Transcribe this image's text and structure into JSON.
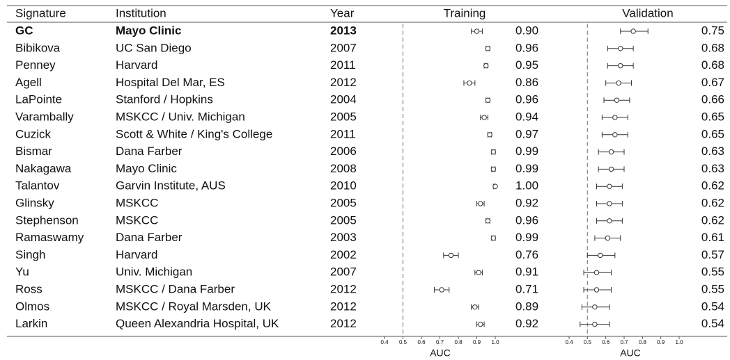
{
  "table": {
    "columns": [
      "Signature",
      "Institution",
      "Year"
    ],
    "highlight_row": 0,
    "rows": [
      [
        "GC",
        "Mayo Clinic",
        "2013"
      ],
      [
        "Bibikova",
        "UC San Diego",
        "2007"
      ],
      [
        "Penney",
        "Harvard",
        "2011"
      ],
      [
        "Agell",
        "Hospital Del Mar, ES",
        "2012"
      ],
      [
        "LaPointe",
        "Stanford / Hopkins",
        "2004"
      ],
      [
        "Varambally",
        "MSKCC / Univ. Michigan",
        "2005"
      ],
      [
        "Cuzick",
        "Scott & White / King's College",
        "2011"
      ],
      [
        "Bismar",
        "Dana Farber",
        "2006"
      ],
      [
        "Nakagawa",
        "Mayo Clinic",
        "2008"
      ],
      [
        "Talantov",
        "Garvin Institute, AUS",
        "2010"
      ],
      [
        "Glinsky",
        "MSKCC",
        "2005"
      ],
      [
        "Stephenson",
        "MSKCC",
        "2005"
      ],
      [
        "Ramaswamy",
        "Dana Farber",
        "2003"
      ],
      [
        "Singh",
        "Harvard",
        "2002"
      ],
      [
        "Yu",
        "Univ. Michigan",
        "2007"
      ],
      [
        "Ross",
        "MSKCC / Dana Farber",
        "2012"
      ],
      [
        "Olmos",
        "MSKCC / Royal Marsden, UK",
        "2012"
      ],
      [
        "Larkin",
        "Queen Alexandria Hospital, UK",
        "2012"
      ]
    ]
  },
  "chart_data": [
    {
      "type": "forest",
      "title": "Training",
      "xlabel": "AUC",
      "xlim": [
        0.4,
        1.0
      ],
      "xticks": [
        0.4,
        0.5,
        0.6,
        0.7,
        0.8,
        0.9,
        {
          "value": 1,
          "label": "1.0"
        }
      ],
      "reference": 0.5,
      "values": [
        0.9,
        0.96,
        0.95,
        0.86,
        0.96,
        0.94,
        0.97,
        0.99,
        0.99,
        1,
        0.92,
        0.96,
        0.99,
        0.76,
        0.91,
        0.71,
        0.89,
        0.92
      ],
      "value_labels": [
        "0.90",
        "0.96",
        "0.95",
        "0.86",
        "0.96",
        "0.94",
        "0.97",
        "0.99",
        "0.99",
        "1.00",
        "0.92",
        "0.96",
        "0.99",
        "0.76",
        "0.91",
        "0.71",
        "0.89",
        "0.92"
      ],
      "ci_low": [
        0.87,
        0.95,
        0.94,
        0.83,
        0.95,
        0.92,
        0.96,
        0.98,
        0.98,
        0.99,
        0.9,
        0.95,
        0.98,
        0.72,
        0.89,
        0.67,
        0.87,
        0.9
      ],
      "ci_high": [
        0.93,
        0.97,
        0.96,
        0.89,
        0.97,
        0.96,
        0.98,
        1,
        1,
        1,
        0.94,
        0.97,
        1,
        0.8,
        0.93,
        0.75,
        0.91,
        0.94
      ]
    },
    {
      "type": "forest",
      "title": "Validation",
      "xlabel": "AUC",
      "xlim": [
        0.4,
        1.0
      ],
      "xticks": [
        0.4,
        0.5,
        0.6,
        0.7,
        0.8,
        0.9,
        {
          "value": 1,
          "label": "1.0"
        }
      ],
      "reference": 0.5,
      "values": [
        0.75,
        0.68,
        0.68,
        0.67,
        0.66,
        0.65,
        0.65,
        0.63,
        0.63,
        0.62,
        0.62,
        0.62,
        0.61,
        0.57,
        0.55,
        0.55,
        0.54,
        0.54
      ],
      "value_labels": [
        "0.75",
        "0.68",
        "0.68",
        "0.67",
        "0.66",
        "0.65",
        "0.65",
        "0.63",
        "0.63",
        "0.62",
        "0.62",
        "0.62",
        "0.61",
        "0.57",
        "0.55",
        "0.55",
        "0.54",
        "0.54"
      ],
      "ci_low": [
        0.68,
        0.61,
        0.61,
        0.6,
        0.59,
        0.58,
        0.58,
        0.56,
        0.56,
        0.55,
        0.55,
        0.55,
        0.54,
        0.5,
        0.48,
        0.48,
        0.47,
        0.46
      ],
      "ci_high": [
        0.83,
        0.75,
        0.75,
        0.74,
        0.73,
        0.72,
        0.72,
        0.7,
        0.7,
        0.69,
        0.69,
        0.69,
        0.68,
        0.65,
        0.63,
        0.63,
        0.62,
        0.62
      ]
    }
  ]
}
